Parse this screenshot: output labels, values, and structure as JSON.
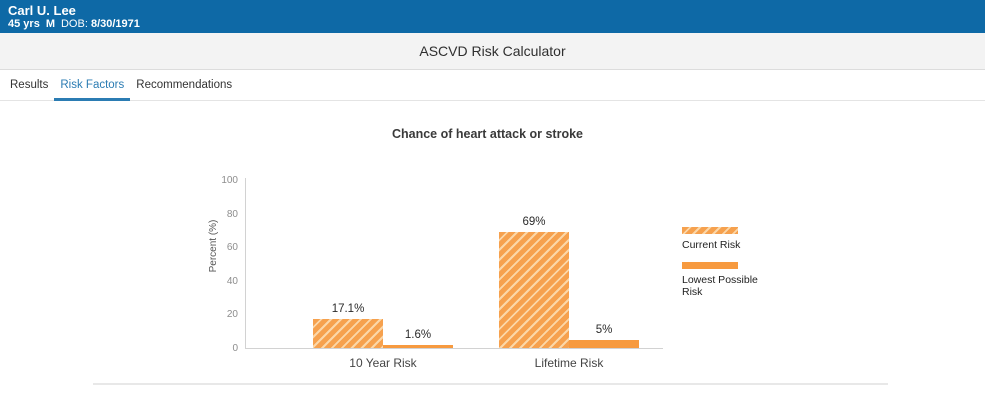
{
  "patient": {
    "name": "Carl U. Lee",
    "age": "45 yrs",
    "sex": "M",
    "dob_label": "DOB:",
    "dob": "8/30/1971"
  },
  "app": {
    "title": "ASCVD Risk Calculator"
  },
  "tabs": [
    {
      "label": "Results",
      "active": false
    },
    {
      "label": "Risk Factors",
      "active": true
    },
    {
      "label": "Recommendations",
      "active": false
    }
  ],
  "chart_data": {
    "type": "bar",
    "title": "Chance of heart attack or stroke",
    "ylabel": "Percent (%)",
    "ylim": [
      0,
      100
    ],
    "yticks": [
      0,
      20,
      40,
      60,
      80,
      100
    ],
    "grid": false,
    "legend_position": "right",
    "categories": [
      "10 Year Risk",
      "Lifetime Risk"
    ],
    "series": [
      {
        "name": "Current Risk",
        "style": "hatched",
        "values": [
          17.1,
          69
        ],
        "labels": [
          "17.1%",
          "69%"
        ]
      },
      {
        "name": "Lowest Possible Risk",
        "style": "solid",
        "values": [
          1.6,
          5
        ],
        "labels": [
          "1.6%",
          "5%"
        ]
      }
    ],
    "colors": {
      "bar_orange": "#f79a3f",
      "hatch_base": "#f6a14e",
      "hatch_stripe": "#fbd7a8"
    }
  },
  "theme": {
    "banner_blue": "#0e69a6",
    "active_tab_blue": "#2b7cb3",
    "title_bar_gray": "#f3f3f3"
  }
}
